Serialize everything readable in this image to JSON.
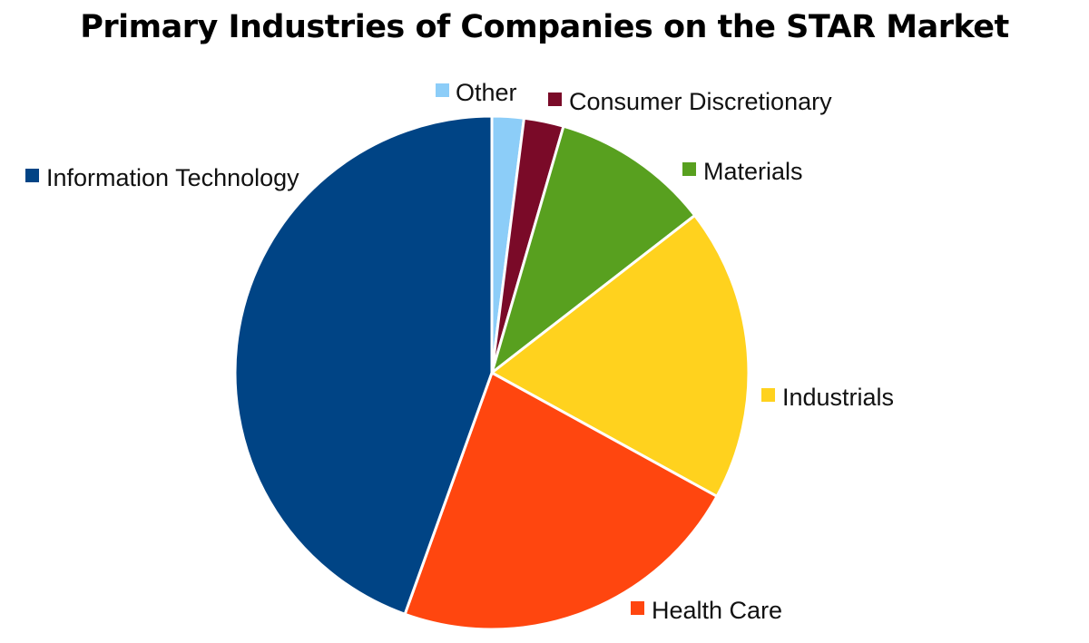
{
  "chart_data": {
    "type": "pie",
    "title": "Primary Industries of Companies on the STAR Market",
    "legend_placement": "labels-around-pie",
    "slices": [
      {
        "label": "Other",
        "value": 2,
        "color": "#8ccdf8"
      },
      {
        "label": "Consumer Discretionary",
        "value": 2.5,
        "color": "#7a0a28"
      },
      {
        "label": "Materials",
        "value": 10,
        "color": "#58a01f"
      },
      {
        "label": "Industrials",
        "value": 18.5,
        "color": "#ffd21e"
      },
      {
        "label": "Health Care",
        "value": 22.5,
        "color": "#ff460f"
      },
      {
        "label": "Information Technology",
        "value": 44.5,
        "color": "#004485"
      }
    ]
  }
}
